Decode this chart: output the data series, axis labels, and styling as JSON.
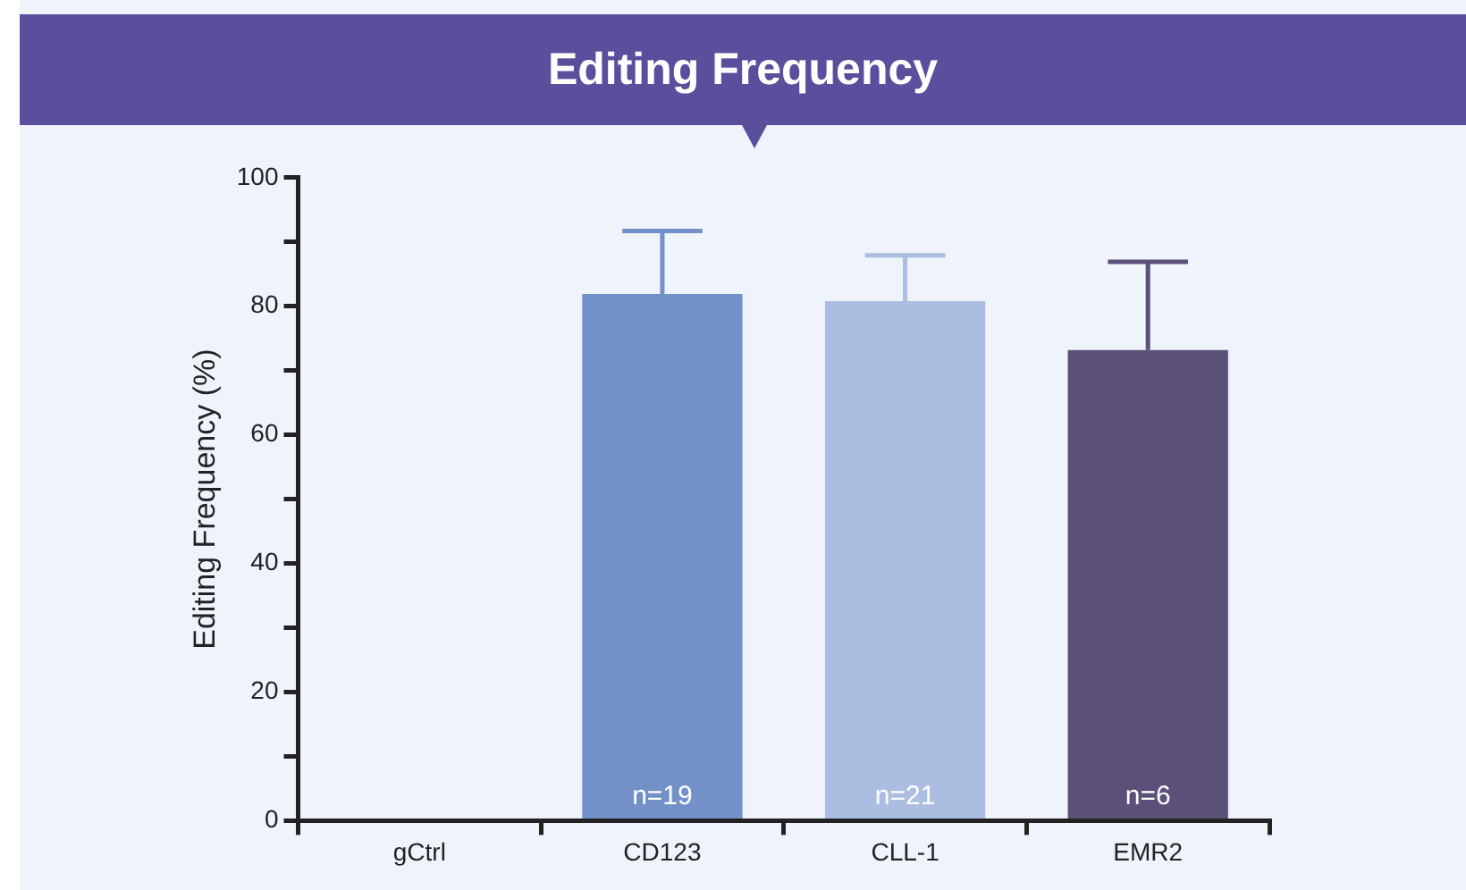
{
  "chart_data": {
    "type": "bar",
    "title": "Editing Frequency",
    "ylabel": "Editing Frequency (%)",
    "categories": [
      "gCtrl",
      "CD123",
      "CLL-1",
      "EMR2"
    ],
    "values": [
      0,
      81.9,
      80.8,
      73.2
    ],
    "colors": [
      "#7391c8",
      "#7391c8",
      "#abbde0",
      "#5b5078"
    ],
    "errors": [
      null,
      [
        81.9,
        91.7
      ],
      [
        80.8,
        87.9
      ],
      [
        73.2,
        86.9
      ]
    ],
    "ylim": [
      0,
      100
    ],
    "yticks": [
      0,
      {
        "value": 10,
        "label": null
      },
      20,
      {
        "value": 30,
        "label": null
      },
      40,
      {
        "value": 50,
        "label": null
      },
      60,
      {
        "value": 70,
        "label": null
      },
      80,
      {
        "value": 90,
        "label": null
      },
      100
    ],
    "annotations": [
      "n=19",
      "n=21",
      "n=6"
    ],
    "grid": false,
    "legend": false
  }
}
